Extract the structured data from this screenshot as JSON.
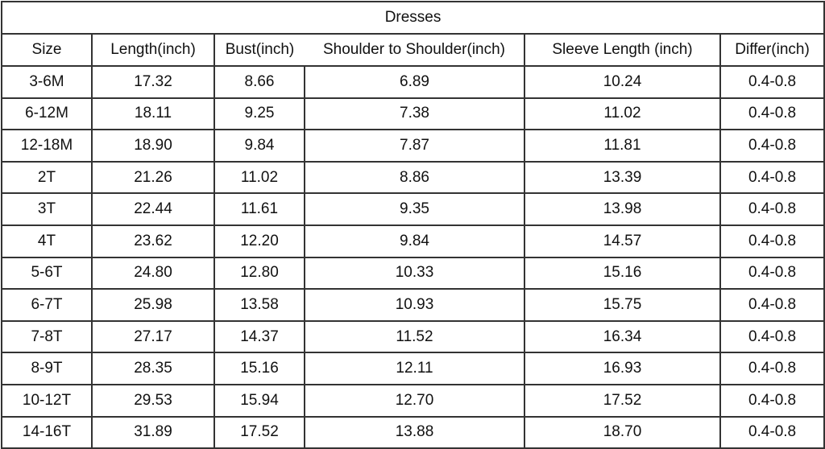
{
  "title": "Dresses",
  "columns": [
    "Size",
    "Length(inch)",
    "Bust(inch)",
    "Shoulder to Shoulder(inch)",
    "Sleeve Length (inch)",
    "Differ(inch)"
  ],
  "rows": [
    [
      "3-6M",
      "17.32",
      "8.66",
      "6.89",
      "10.24",
      "0.4-0.8"
    ],
    [
      "6-12M",
      "18.11",
      "9.25",
      "7.38",
      "11.02",
      "0.4-0.8"
    ],
    [
      "12-18M",
      "18.90",
      "9.84",
      "7.87",
      "11.81",
      "0.4-0.8"
    ],
    [
      "2T",
      "21.26",
      "11.02",
      "8.86",
      "13.39",
      "0.4-0.8"
    ],
    [
      "3T",
      "22.44",
      "11.61",
      "9.35",
      "13.98",
      "0.4-0.8"
    ],
    [
      "4T",
      "23.62",
      "12.20",
      "9.84",
      "14.57",
      "0.4-0.8"
    ],
    [
      "5-6T",
      "24.80",
      "12.80",
      "10.33",
      "15.16",
      "0.4-0.8"
    ],
    [
      "6-7T",
      "25.98",
      "13.58",
      "10.93",
      "15.75",
      "0.4-0.8"
    ],
    [
      "7-8T",
      "27.17",
      "14.37",
      "11.52",
      "16.34",
      "0.4-0.8"
    ],
    [
      "8-9T",
      "28.35",
      "15.16",
      "12.11",
      "16.93",
      "0.4-0.8"
    ],
    [
      "10-12T",
      "29.53",
      "15.94",
      "12.70",
      "17.52",
      "0.4-0.8"
    ],
    [
      "14-16T",
      "31.89",
      "17.52",
      "13.88",
      "18.70",
      "0.4-0.8"
    ]
  ]
}
